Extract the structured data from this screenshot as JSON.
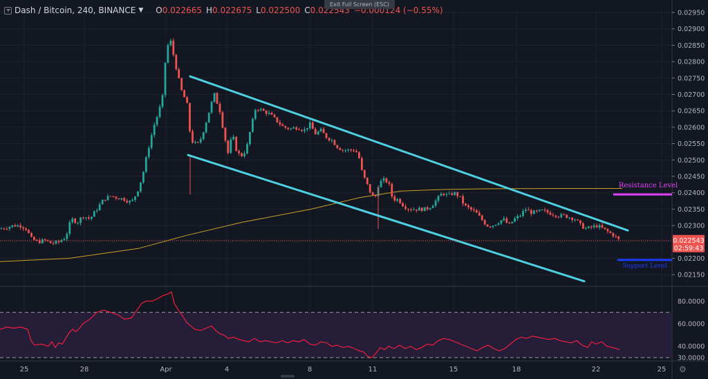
{
  "header": {
    "symbol": "Dash / Bitcoin, 240, BINANCE",
    "ohlc": [
      {
        "k": "O",
        "v": "0.022665"
      },
      {
        "k": "H",
        "v": "0.022675"
      },
      {
        "k": "L",
        "v": "0.022500"
      },
      {
        "k": "C",
        "v": "0.022543"
      },
      {
        "k": "",
        "v": "−0.000124 (−0.55%)"
      }
    ],
    "exit_fullscreen": "Exit Full Screen (ESC)"
  },
  "colors": {
    "background": "#131722",
    "up": "#26a69a",
    "down": "#ef5350",
    "channel": "#4dd0e1",
    "ma": "#c9a227",
    "resistance": "#e040fb",
    "support": "#1e3cff",
    "rsi": "#f01f3c",
    "rsi_band": "#2a1f3d"
  },
  "chart_data": [
    {
      "type": "candlestick",
      "title": "",
      "x_ticks": [
        "25",
        "28",
        "Apr",
        "4",
        "8",
        "11",
        "15",
        "18",
        "22",
        "25"
      ],
      "y_ticks": [
        "0.02950",
        "0.02900",
        "0.02850",
        "0.02800",
        "0.02750",
        "0.02700",
        "0.02650",
        "0.02600",
        "0.02550",
        "0.02500",
        "0.02450",
        "0.02400",
        "0.02350",
        "0.02300",
        "0.02250",
        "0.02200",
        "0.02150"
      ],
      "ylim": [
        0.0213,
        0.0297
      ],
      "price_path": [
        [
          0,
          0.0229
        ],
        [
          10,
          0.02295
        ],
        [
          20,
          0.023
        ],
        [
          30,
          0.023
        ],
        [
          38,
          0.0229
        ],
        [
          45,
          0.0226
        ],
        [
          55,
          0.0225
        ],
        [
          65,
          0.02255
        ],
        [
          75,
          0.02245
        ],
        [
          85,
          0.0225
        ],
        [
          95,
          0.02265
        ],
        [
          103,
          0.0232
        ],
        [
          112,
          0.0231
        ],
        [
          120,
          0.0233
        ],
        [
          130,
          0.0232
        ],
        [
          140,
          0.0235
        ],
        [
          150,
          0.0238
        ],
        [
          160,
          0.0239
        ],
        [
          170,
          0.02385
        ],
        [
          180,
          0.0238
        ],
        [
          190,
          0.0237
        ],
        [
          198,
          0.024
        ],
        [
          206,
          0.0245
        ],
        [
          214,
          0.0253
        ],
        [
          222,
          0.026
        ],
        [
          230,
          0.0265
        ],
        [
          236,
          0.027
        ],
        [
          240,
          0.0283
        ],
        [
          246,
          0.0287
        ],
        [
          252,
          0.0281
        ],
        [
          258,
          0.0275
        ],
        [
          264,
          0.027
        ],
        [
          270,
          0.0268
        ],
        [
          276,
          0.0256
        ],
        [
          282,
          0.0255
        ],
        [
          288,
          0.0255
        ],
        [
          296,
          0.026
        ],
        [
          304,
          0.0266
        ],
        [
          310,
          0.027
        ],
        [
          318,
          0.0265
        ],
        [
          324,
          0.0258
        ],
        [
          330,
          0.0252
        ],
        [
          336,
          0.0258
        ],
        [
          342,
          0.0253
        ],
        [
          348,
          0.0251
        ],
        [
          356,
          0.0253
        ],
        [
          362,
          0.0259
        ],
        [
          370,
          0.0266
        ],
        [
          380,
          0.0265
        ],
        [
          390,
          0.0264
        ],
        [
          400,
          0.0262
        ],
        [
          410,
          0.026
        ],
        [
          420,
          0.02595
        ],
        [
          430,
          0.026
        ],
        [
          440,
          0.0259
        ],
        [
          448,
          0.0261
        ],
        [
          456,
          0.0258
        ],
        [
          464,
          0.0259
        ],
        [
          472,
          0.0257
        ],
        [
          480,
          0.0256
        ],
        [
          488,
          0.0254
        ],
        [
          496,
          0.0253
        ],
        [
          504,
          0.0253
        ],
        [
          512,
          0.0253
        ],
        [
          518,
          0.0252
        ],
        [
          524,
          0.0246
        ],
        [
          530,
          0.0243
        ],
        [
          536,
          0.024
        ],
        [
          542,
          0.0238
        ],
        [
          548,
          0.0243
        ],
        [
          556,
          0.0244
        ],
        [
          562,
          0.0243
        ],
        [
          568,
          0.0238
        ],
        [
          576,
          0.0238
        ],
        [
          584,
          0.0236
        ],
        [
          592,
          0.0235
        ],
        [
          600,
          0.0235
        ],
        [
          608,
          0.0235
        ],
        [
          616,
          0.0235
        ],
        [
          624,
          0.0236
        ],
        [
          632,
          0.0238
        ],
        [
          640,
          0.024
        ],
        [
          648,
          0.0239
        ],
        [
          656,
          0.024
        ],
        [
          664,
          0.0239
        ],
        [
          672,
          0.0236
        ],
        [
          680,
          0.0235
        ],
        [
          688,
          0.0234
        ],
        [
          696,
          0.0232
        ],
        [
          704,
          0.023
        ],
        [
          712,
          0.023
        ],
        [
          720,
          0.0231
        ],
        [
          728,
          0.0232
        ],
        [
          736,
          0.023
        ],
        [
          744,
          0.0232
        ],
        [
          752,
          0.0233
        ],
        [
          760,
          0.0235
        ],
        [
          768,
          0.0234
        ],
        [
          776,
          0.0234
        ],
        [
          784,
          0.02345
        ],
        [
          792,
          0.0234
        ],
        [
          800,
          0.02335
        ],
        [
          808,
          0.0233
        ],
        [
          816,
          0.0233
        ],
        [
          824,
          0.02325
        ],
        [
          832,
          0.0232
        ],
        [
          840,
          0.023
        ],
        [
          848,
          0.0229
        ],
        [
          856,
          0.02295
        ],
        [
          864,
          0.023
        ],
        [
          872,
          0.0229
        ],
        [
          880,
          0.0228
        ],
        [
          888,
          0.0227
        ],
        [
          896,
          0.02254
        ]
      ],
      "series": [
        {
          "kind": "ma",
          "points": [
            [
              0,
              0.0219
            ],
            [
              100,
              0.022
            ],
            [
              200,
              0.0223
            ],
            [
              270,
              0.0227
            ],
            [
              350,
              0.0231
            ],
            [
              450,
              0.0235
            ],
            [
              520,
              0.02385
            ],
            [
              580,
              0.02405
            ],
            [
              640,
              0.0241
            ],
            [
              700,
              0.02412
            ],
            [
              800,
              0.02413
            ],
            [
              900,
              0.02413
            ]
          ]
        },
        {
          "kind": "channel-upper",
          "points": [
            [
              275,
              0.02755
            ],
            [
              908,
              0.02285
            ]
          ]
        },
        {
          "kind": "channel-lower",
          "points": [
            [
              272,
              0.02515
            ],
            [
              845,
              0.0213
            ]
          ]
        }
      ],
      "last_price": {
        "value": "0.022543",
        "timer": "02:59:43"
      },
      "annotations": [
        {
          "label": "Resistance Level",
          "y": 0.02395,
          "x_from": 887,
          "x_to": 972
        },
        {
          "label": "Support Level",
          "y": 0.02195,
          "x_from": 893,
          "x_to": 972
        }
      ]
    },
    {
      "type": "line",
      "title": "",
      "y_ticks": [
        "80.0000",
        "60.0000",
        "40.0000",
        "30.0000"
      ],
      "ylim": [
        27,
        93
      ],
      "overbought": 70,
      "oversold": 30,
      "values": [
        [
          0,
          55
        ],
        [
          10,
          57
        ],
        [
          20,
          56
        ],
        [
          30,
          57
        ],
        [
          40,
          55
        ],
        [
          45,
          45
        ],
        [
          50,
          41
        ],
        [
          60,
          42
        ],
        [
          70,
          40
        ],
        [
          75,
          44
        ],
        [
          80,
          39
        ],
        [
          85,
          43
        ],
        [
          90,
          42
        ],
        [
          95,
          47
        ],
        [
          100,
          52
        ],
        [
          105,
          55
        ],
        [
          110,
          53
        ],
        [
          115,
          56
        ],
        [
          120,
          60
        ],
        [
          130,
          64
        ],
        [
          140,
          70
        ],
        [
          150,
          72
        ],
        [
          160,
          70
        ],
        [
          170,
          68
        ],
        [
          180,
          64
        ],
        [
          190,
          65
        ],
        [
          198,
          72
        ],
        [
          205,
          78
        ],
        [
          212,
          80
        ],
        [
          220,
          80
        ],
        [
          228,
          82
        ],
        [
          236,
          85
        ],
        [
          242,
          86
        ],
        [
          248,
          88
        ],
        [
          252,
          78
        ],
        [
          258,
          72
        ],
        [
          264,
          67
        ],
        [
          270,
          61
        ],
        [
          276,
          58
        ],
        [
          282,
          55
        ],
        [
          290,
          54
        ],
        [
          298,
          56
        ],
        [
          306,
          58
        ],
        [
          312,
          54
        ],
        [
          318,
          51
        ],
        [
          324,
          50
        ],
        [
          330,
          47
        ],
        [
          338,
          48
        ],
        [
          346,
          46
        ],
        [
          352,
          45
        ],
        [
          360,
          44
        ],
        [
          368,
          47
        ],
        [
          376,
          44
        ],
        [
          384,
          45
        ],
        [
          392,
          44
        ],
        [
          400,
          43
        ],
        [
          408,
          45
        ],
        [
          416,
          43
        ],
        [
          424,
          45
        ],
        [
          432,
          44
        ],
        [
          440,
          46
        ],
        [
          448,
          42
        ],
        [
          456,
          41
        ],
        [
          464,
          44
        ],
        [
          472,
          43
        ],
        [
          480,
          40
        ],
        [
          488,
          41
        ],
        [
          496,
          39
        ],
        [
          504,
          40
        ],
        [
          512,
          38
        ],
        [
          520,
          36
        ],
        [
          526,
          35
        ],
        [
          532,
          31
        ],
        [
          538,
          30
        ],
        [
          544,
          34
        ],
        [
          550,
          39
        ],
        [
          556,
          37
        ],
        [
          562,
          40
        ],
        [
          570,
          38
        ],
        [
          578,
          41
        ],
        [
          586,
          38
        ],
        [
          594,
          40
        ],
        [
          602,
          37
        ],
        [
          610,
          39
        ],
        [
          618,
          42
        ],
        [
          626,
          41
        ],
        [
          634,
          45
        ],
        [
          642,
          47
        ],
        [
          650,
          46
        ],
        [
          658,
          44
        ],
        [
          666,
          42
        ],
        [
          674,
          40
        ],
        [
          682,
          38
        ],
        [
          690,
          36
        ],
        [
          698,
          39
        ],
        [
          706,
          41
        ],
        [
          714,
          38
        ],
        [
          722,
          36
        ],
        [
          730,
          38
        ],
        [
          738,
          42
        ],
        [
          746,
          46
        ],
        [
          754,
          48
        ],
        [
          762,
          47
        ],
        [
          770,
          49
        ],
        [
          778,
          48
        ],
        [
          786,
          47
        ],
        [
          794,
          46
        ],
        [
          802,
          47
        ],
        [
          810,
          45
        ],
        [
          818,
          44
        ],
        [
          826,
          43
        ],
        [
          834,
          45
        ],
        [
          842,
          41
        ],
        [
          850,
          39
        ],
        [
          856,
          44
        ],
        [
          862,
          42
        ],
        [
          870,
          44
        ],
        [
          878,
          40
        ],
        [
          886,
          39
        ],
        [
          896,
          37
        ]
      ]
    }
  ]
}
